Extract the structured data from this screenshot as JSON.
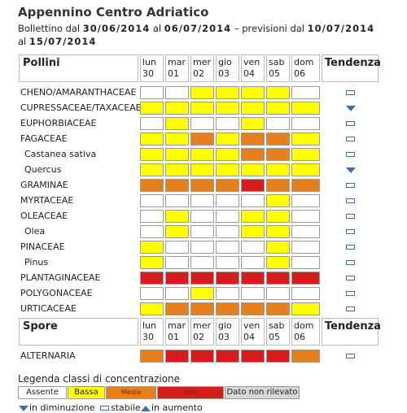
{
  "header": {
    "title": "Appennino Centro Adriatico",
    "bulletin": [
      "Bollettino dal ",
      "30/06/2014",
      " al ",
      "06/07/2014",
      " – previsioni dal ",
      "10/07/2014",
      " al ",
      "15/07/2014"
    ]
  },
  "sections": [
    {
      "header": "Pollini",
      "trend_header": "Tendenza",
      "days": [
        {
          "day": "lun",
          "date": "30"
        },
        {
          "day": "mar",
          "date": "01"
        },
        {
          "day": "mer",
          "date": "02"
        },
        {
          "day": "gio",
          "date": "03"
        },
        {
          "day": "ven",
          "date": "04"
        },
        {
          "day": "sab",
          "date": "05"
        },
        {
          "day": "dom",
          "date": "06"
        }
      ],
      "rows": [
        {
          "name": "CHENO/AMARANTHACEAE",
          "levels": [
            "Assente",
            "Assente",
            "Bassa",
            "Bassa",
            "Bassa",
            "Bassa",
            "Assente"
          ],
          "trend": "stabile"
        },
        {
          "name": "CUPRESSACEAE/TAXACEAE",
          "levels": [
            "Bassa",
            "Bassa",
            "Bassa",
            "Bassa",
            "Bassa",
            "Bassa",
            "Bassa"
          ],
          "trend": "in diminuzione"
        },
        {
          "name": "EUPHORBIACEAE",
          "levels": [
            "Assente",
            "Bassa",
            "Assente",
            "Assente",
            "Bassa",
            "Assente",
            "Assente"
          ],
          "trend": "stabile"
        },
        {
          "name": "FAGACEAE",
          "levels": [
            "Bassa",
            "Bassa",
            "Media",
            "Bassa",
            "Media",
            "Media",
            "Bassa"
          ],
          "trend": "stabile"
        },
        {
          "name": "Castanea sativa",
          "levels": [
            "Bassa",
            "Bassa",
            "Bassa",
            "Bassa",
            "Media",
            "Media",
            "Bassa"
          ],
          "trend": "stabile"
        },
        {
          "name": "Quercus",
          "levels": [
            "Bassa",
            "Bassa",
            "Bassa",
            "Bassa",
            "Bassa",
            "Bassa",
            "Bassa"
          ],
          "trend": "in diminuzione"
        },
        {
          "name": "GRAMINAE",
          "levels": [
            "Media",
            "Media",
            "Media",
            "Media",
            "Alta",
            "Media",
            "Media"
          ],
          "trend": "stabile"
        },
        {
          "name": "MYRTACEAE",
          "levels": [
            "Assente",
            "Assente",
            "Assente",
            "Assente",
            "Assente",
            "Bassa",
            "Assente"
          ],
          "trend": "stabile"
        },
        {
          "name": "OLEACEAE",
          "levels": [
            "Assente",
            "Bassa",
            "Assente",
            "Assente",
            "Bassa",
            "Bassa",
            "Assente"
          ],
          "trend": "stabile"
        },
        {
          "name": "Olea",
          "levels": [
            "Assente",
            "Bassa",
            "Assente",
            "Assente",
            "Bassa",
            "Bassa",
            "Assente"
          ],
          "trend": "stabile"
        },
        {
          "name": "PINACEAE",
          "levels": [
            "Bassa",
            "Assente",
            "Assente",
            "Assente",
            "Assente",
            "Bassa",
            "Assente"
          ],
          "trend": "stabile"
        },
        {
          "name": "Pinus",
          "levels": [
            "Bassa",
            "Assente",
            "Assente",
            "Assente",
            "Assente",
            "Bassa",
            "Assente"
          ],
          "trend": "stabile"
        },
        {
          "name": "PLANTAGINACEAE",
          "levels": [
            "Alta",
            "Alta",
            "Alta",
            "Alta",
            "Alta",
            "Alta",
            "Alta"
          ],
          "trend": "stabile"
        },
        {
          "name": "POLYGONACEAE",
          "levels": [
            "Assente",
            "Assente",
            "Bassa",
            "Assente",
            "Assente",
            "Assente",
            "Assente"
          ],
          "trend": "stabile"
        },
        {
          "name": "URTICACEAE",
          "levels": [
            "Bassa",
            "Media",
            "Media",
            "Media",
            "Media",
            "Media",
            "Bassa"
          ],
          "trend": "stabile"
        }
      ]
    },
    {
      "header": "Spore",
      "trend_header": "Tendenza",
      "days": [
        {
          "day": "lun",
          "date": "30"
        },
        {
          "day": "mar",
          "date": "01"
        },
        {
          "day": "mer",
          "date": "02"
        },
        {
          "day": "gio",
          "date": "03"
        },
        {
          "day": "ven",
          "date": "04"
        },
        {
          "day": "sab",
          "date": "05"
        },
        {
          "day": "dom",
          "date": "06"
        }
      ],
      "rows": [
        {
          "name": "ALTERNARIA",
          "levels": [
            "Media",
            "Alta",
            "Alta",
            "Alta",
            "Alta",
            "Alta",
            "Media"
          ],
          "trend": "stabile"
        }
      ]
    }
  ],
  "legend": {
    "title": "Legenda classi di concentrazione",
    "classes": [
      {
        "label": "Assente",
        "color": "#ffffff"
      },
      {
        "label": "Bassa",
        "color": "#ffff00"
      },
      {
        "label": "Media",
        "color": "#e5801c"
      },
      {
        "label": "Alta",
        "color": "#d41e1e"
      },
      {
        "label": "Dato non rilevato",
        "color": "#d6d6d6"
      }
    ],
    "trends": [
      "in diminuzione",
      "stabile",
      "in aumento"
    ]
  }
}
